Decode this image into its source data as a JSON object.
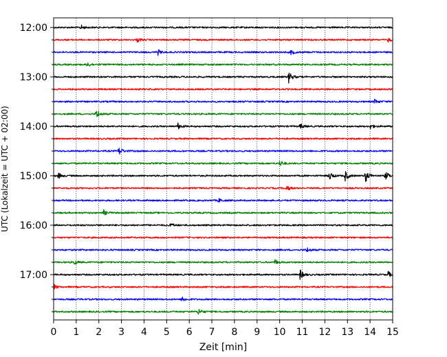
{
  "chart_data": {
    "type": "line",
    "title": "",
    "xlabel": "Zeit  [min]",
    "ylabel": "UTC (Lokalzeit = UTC + 02:00)",
    "xlim": [
      0,
      15
    ],
    "x_ticks": [
      "0",
      "1",
      "2",
      "3",
      "4",
      "5",
      "6",
      "7",
      "8",
      "9",
      "10",
      "11",
      "12",
      "13",
      "14",
      "15"
    ],
    "y_ticks": [
      "12:00",
      "13:00",
      "14:00",
      "15:00",
      "16:00",
      "17:00"
    ],
    "grid": "vertical dotted lines at each minute",
    "legend": "none",
    "row_interval_minutes": 15,
    "color_cycle": [
      "#000000",
      "#ff0000",
      "#0000ff",
      "#008000"
    ],
    "rows": [
      {
        "start": "12:00",
        "events": [
          {
            "t": 1.2,
            "amp": 0.5
          }
        ]
      },
      {
        "start": "12:15",
        "events": [
          {
            "t": 3.7,
            "amp": 0.45
          },
          {
            "t": 14.8,
            "amp": 0.4
          }
        ]
      },
      {
        "start": "12:30",
        "events": [
          {
            "t": 4.6,
            "amp": 0.6
          },
          {
            "t": 10.5,
            "amp": 0.55
          }
        ]
      },
      {
        "start": "12:45",
        "events": [
          {
            "t": 1.5,
            "amp": 0.5
          }
        ]
      },
      {
        "start": "13:00",
        "events": [
          {
            "t": 10.4,
            "amp": 1.2
          }
        ]
      },
      {
        "start": "13:15",
        "events": []
      },
      {
        "start": "13:30",
        "events": [
          {
            "t": 14.2,
            "amp": 0.5
          }
        ]
      },
      {
        "start": "13:45",
        "events": [
          {
            "t": 1.9,
            "amp": 0.9
          }
        ]
      },
      {
        "start": "14:00",
        "events": [
          {
            "t": 5.5,
            "amp": 0.6
          },
          {
            "t": 10.9,
            "amp": 0.6
          },
          {
            "t": 14.0,
            "amp": 0.5
          }
        ]
      },
      {
        "start": "14:15",
        "events": []
      },
      {
        "start": "14:30",
        "events": [
          {
            "t": 2.9,
            "amp": 0.8
          }
        ]
      },
      {
        "start": "14:45",
        "events": [
          {
            "t": 10.0,
            "amp": 0.7
          }
        ]
      },
      {
        "start": "15:00",
        "events": [
          {
            "t": 0.2,
            "amp": 0.6
          },
          {
            "t": 12.2,
            "amp": 0.9
          },
          {
            "t": 12.9,
            "amp": 1.0
          },
          {
            "t": 13.8,
            "amp": 1.3
          },
          {
            "t": 14.7,
            "amp": 0.8
          }
        ]
      },
      {
        "start": "15:15",
        "events": [
          {
            "t": 10.3,
            "amp": 0.6
          }
        ]
      },
      {
        "start": "15:30",
        "events": [
          {
            "t": 7.3,
            "amp": 0.4
          }
        ]
      },
      {
        "start": "15:45",
        "events": [
          {
            "t": 2.2,
            "amp": 0.6
          }
        ]
      },
      {
        "start": "16:00",
        "events": [
          {
            "t": 5.2,
            "amp": 0.4
          }
        ]
      },
      {
        "start": "16:15",
        "events": []
      },
      {
        "start": "16:30",
        "events": [
          {
            "t": 11.2,
            "amp": 0.5
          }
        ]
      },
      {
        "start": "16:45",
        "events": [
          {
            "t": 0.9,
            "amp": 0.5
          },
          {
            "t": 9.8,
            "amp": 0.5
          }
        ]
      },
      {
        "start": "17:00",
        "events": [
          {
            "t": 10.9,
            "amp": 1.0
          },
          {
            "t": 14.8,
            "amp": 0.6
          }
        ]
      },
      {
        "start": "17:15",
        "events": [
          {
            "t": 0.0,
            "amp": 0.5
          }
        ]
      },
      {
        "start": "17:30",
        "events": [
          {
            "t": 5.7,
            "amp": 0.5
          }
        ]
      },
      {
        "start": "17:45",
        "events": [
          {
            "t": 6.4,
            "amp": 0.7
          }
        ]
      }
    ]
  }
}
